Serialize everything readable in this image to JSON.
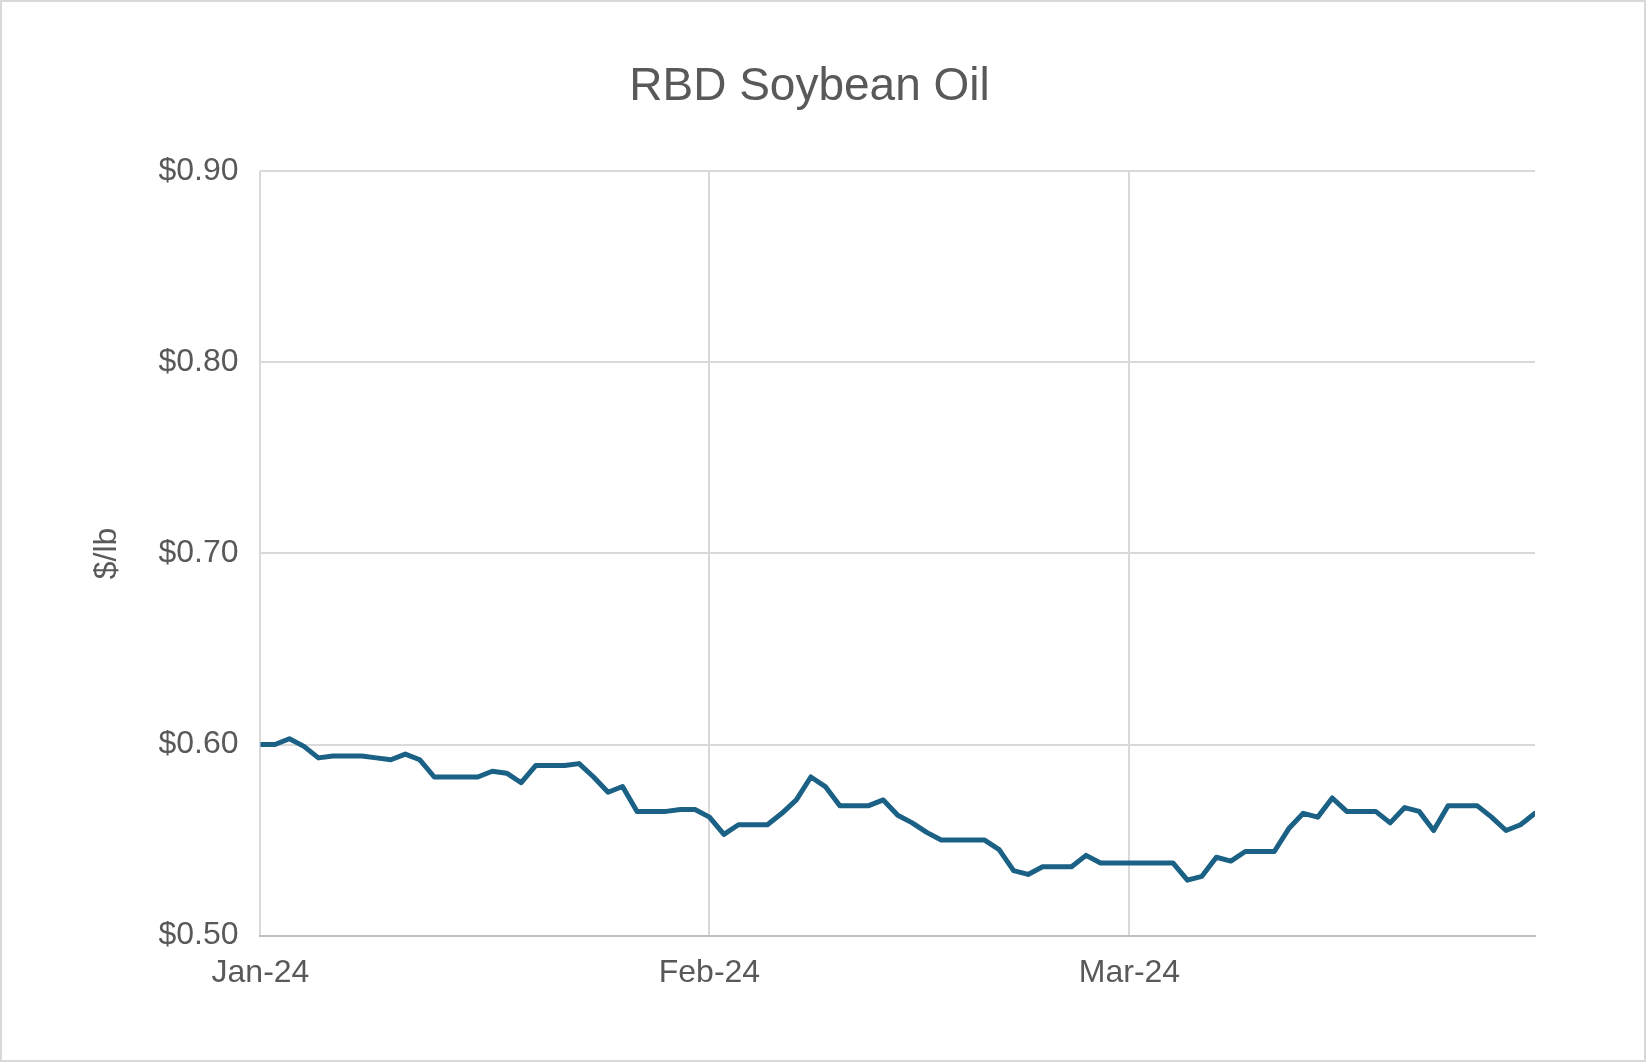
{
  "chart_data": {
    "type": "line",
    "title": "RBD Soybean Oil",
    "ylabel": "$/lb",
    "x": [
      "2024-01-01",
      "2024-01-02",
      "2024-01-03",
      "2024-01-04",
      "2024-01-05",
      "2024-01-06",
      "2024-01-07",
      "2024-01-08",
      "2024-01-09",
      "2024-01-10",
      "2024-01-11",
      "2024-01-12",
      "2024-01-13",
      "2024-01-14",
      "2024-01-15",
      "2024-01-16",
      "2024-01-17",
      "2024-01-18",
      "2024-01-19",
      "2024-01-20",
      "2024-01-21",
      "2024-01-22",
      "2024-01-23",
      "2024-01-24",
      "2024-01-25",
      "2024-01-26",
      "2024-01-27",
      "2024-01-28",
      "2024-01-29",
      "2024-01-30",
      "2024-01-31",
      "2024-02-01",
      "2024-02-02",
      "2024-02-03",
      "2024-02-04",
      "2024-02-05",
      "2024-02-06",
      "2024-02-07",
      "2024-02-08",
      "2024-02-09",
      "2024-02-10",
      "2024-02-11",
      "2024-02-12",
      "2024-02-13",
      "2024-02-14",
      "2024-02-15",
      "2024-02-16",
      "2024-02-17",
      "2024-02-18",
      "2024-02-19",
      "2024-02-20",
      "2024-02-21",
      "2024-02-22",
      "2024-02-23",
      "2024-02-24",
      "2024-02-25",
      "2024-02-26",
      "2024-02-27",
      "2024-02-28",
      "2024-02-29",
      "2024-03-01",
      "2024-03-02",
      "2024-03-03",
      "2024-03-04",
      "2024-03-05",
      "2024-03-06",
      "2024-03-07",
      "2024-03-08",
      "2024-03-09",
      "2024-03-10",
      "2024-03-11",
      "2024-03-12",
      "2024-03-13",
      "2024-03-14",
      "2024-03-15",
      "2024-03-16",
      "2024-03-17",
      "2024-03-18",
      "2024-03-19",
      "2024-03-20",
      "2024-03-21",
      "2024-03-22",
      "2024-03-23",
      "2024-03-24",
      "2024-03-25",
      "2024-03-26",
      "2024-03-27",
      "2024-03-28",
      "2024-03-29"
    ],
    "series": [
      {
        "color": "#1a6185",
        "values": [
          0.6,
          0.6,
          0.603,
          0.599,
          0.593,
          0.594,
          0.594,
          0.594,
          0.593,
          0.592,
          0.595,
          0.592,
          0.583,
          0.583,
          0.583,
          0.583,
          0.586,
          0.585,
          0.58,
          0.589,
          0.589,
          0.589,
          0.59,
          0.583,
          0.575,
          0.578,
          0.565,
          0.565,
          0.565,
          0.566,
          0.566,
          0.562,
          0.553,
          0.558,
          0.558,
          0.558,
          0.564,
          0.571,
          0.583,
          0.578,
          0.568,
          0.568,
          0.568,
          0.571,
          0.563,
          0.559,
          0.554,
          0.55,
          0.55,
          0.55,
          0.55,
          0.545,
          0.534,
          0.532,
          0.536,
          0.536,
          0.536,
          0.542,
          0.538,
          0.538,
          0.538,
          0.538,
          0.538,
          0.538,
          0.529,
          0.531,
          0.541,
          0.539,
          0.544,
          0.544,
          0.544,
          0.556,
          0.564,
          0.562,
          0.572,
          0.565,
          0.565,
          0.565,
          0.559,
          0.567,
          0.565,
          0.555,
          0.568,
          0.568,
          0.568,
          0.562,
          0.555,
          0.558,
          0.564
        ]
      }
    ],
    "xlim": [
      "2024-01-01",
      "2024-03-29"
    ],
    "xticks": [
      {
        "value": "2024-01-01",
        "label": "Jan-24"
      },
      {
        "value": "2024-02-01",
        "label": "Feb-24"
      },
      {
        "value": "2024-03-01",
        "label": "Mar-24"
      }
    ],
    "ylim": [
      0.5,
      0.9
    ],
    "yticks": [
      {
        "value": 0.5,
        "label": "$0.50"
      },
      {
        "value": 0.6,
        "label": "$0.60"
      },
      {
        "value": 0.7,
        "label": "$0.70"
      },
      {
        "value": 0.8,
        "label": "$0.80"
      },
      {
        "value": 0.9,
        "label": "$0.90"
      }
    ],
    "grid": true,
    "legend": false,
    "marker": "none",
    "line_style": "solid"
  }
}
